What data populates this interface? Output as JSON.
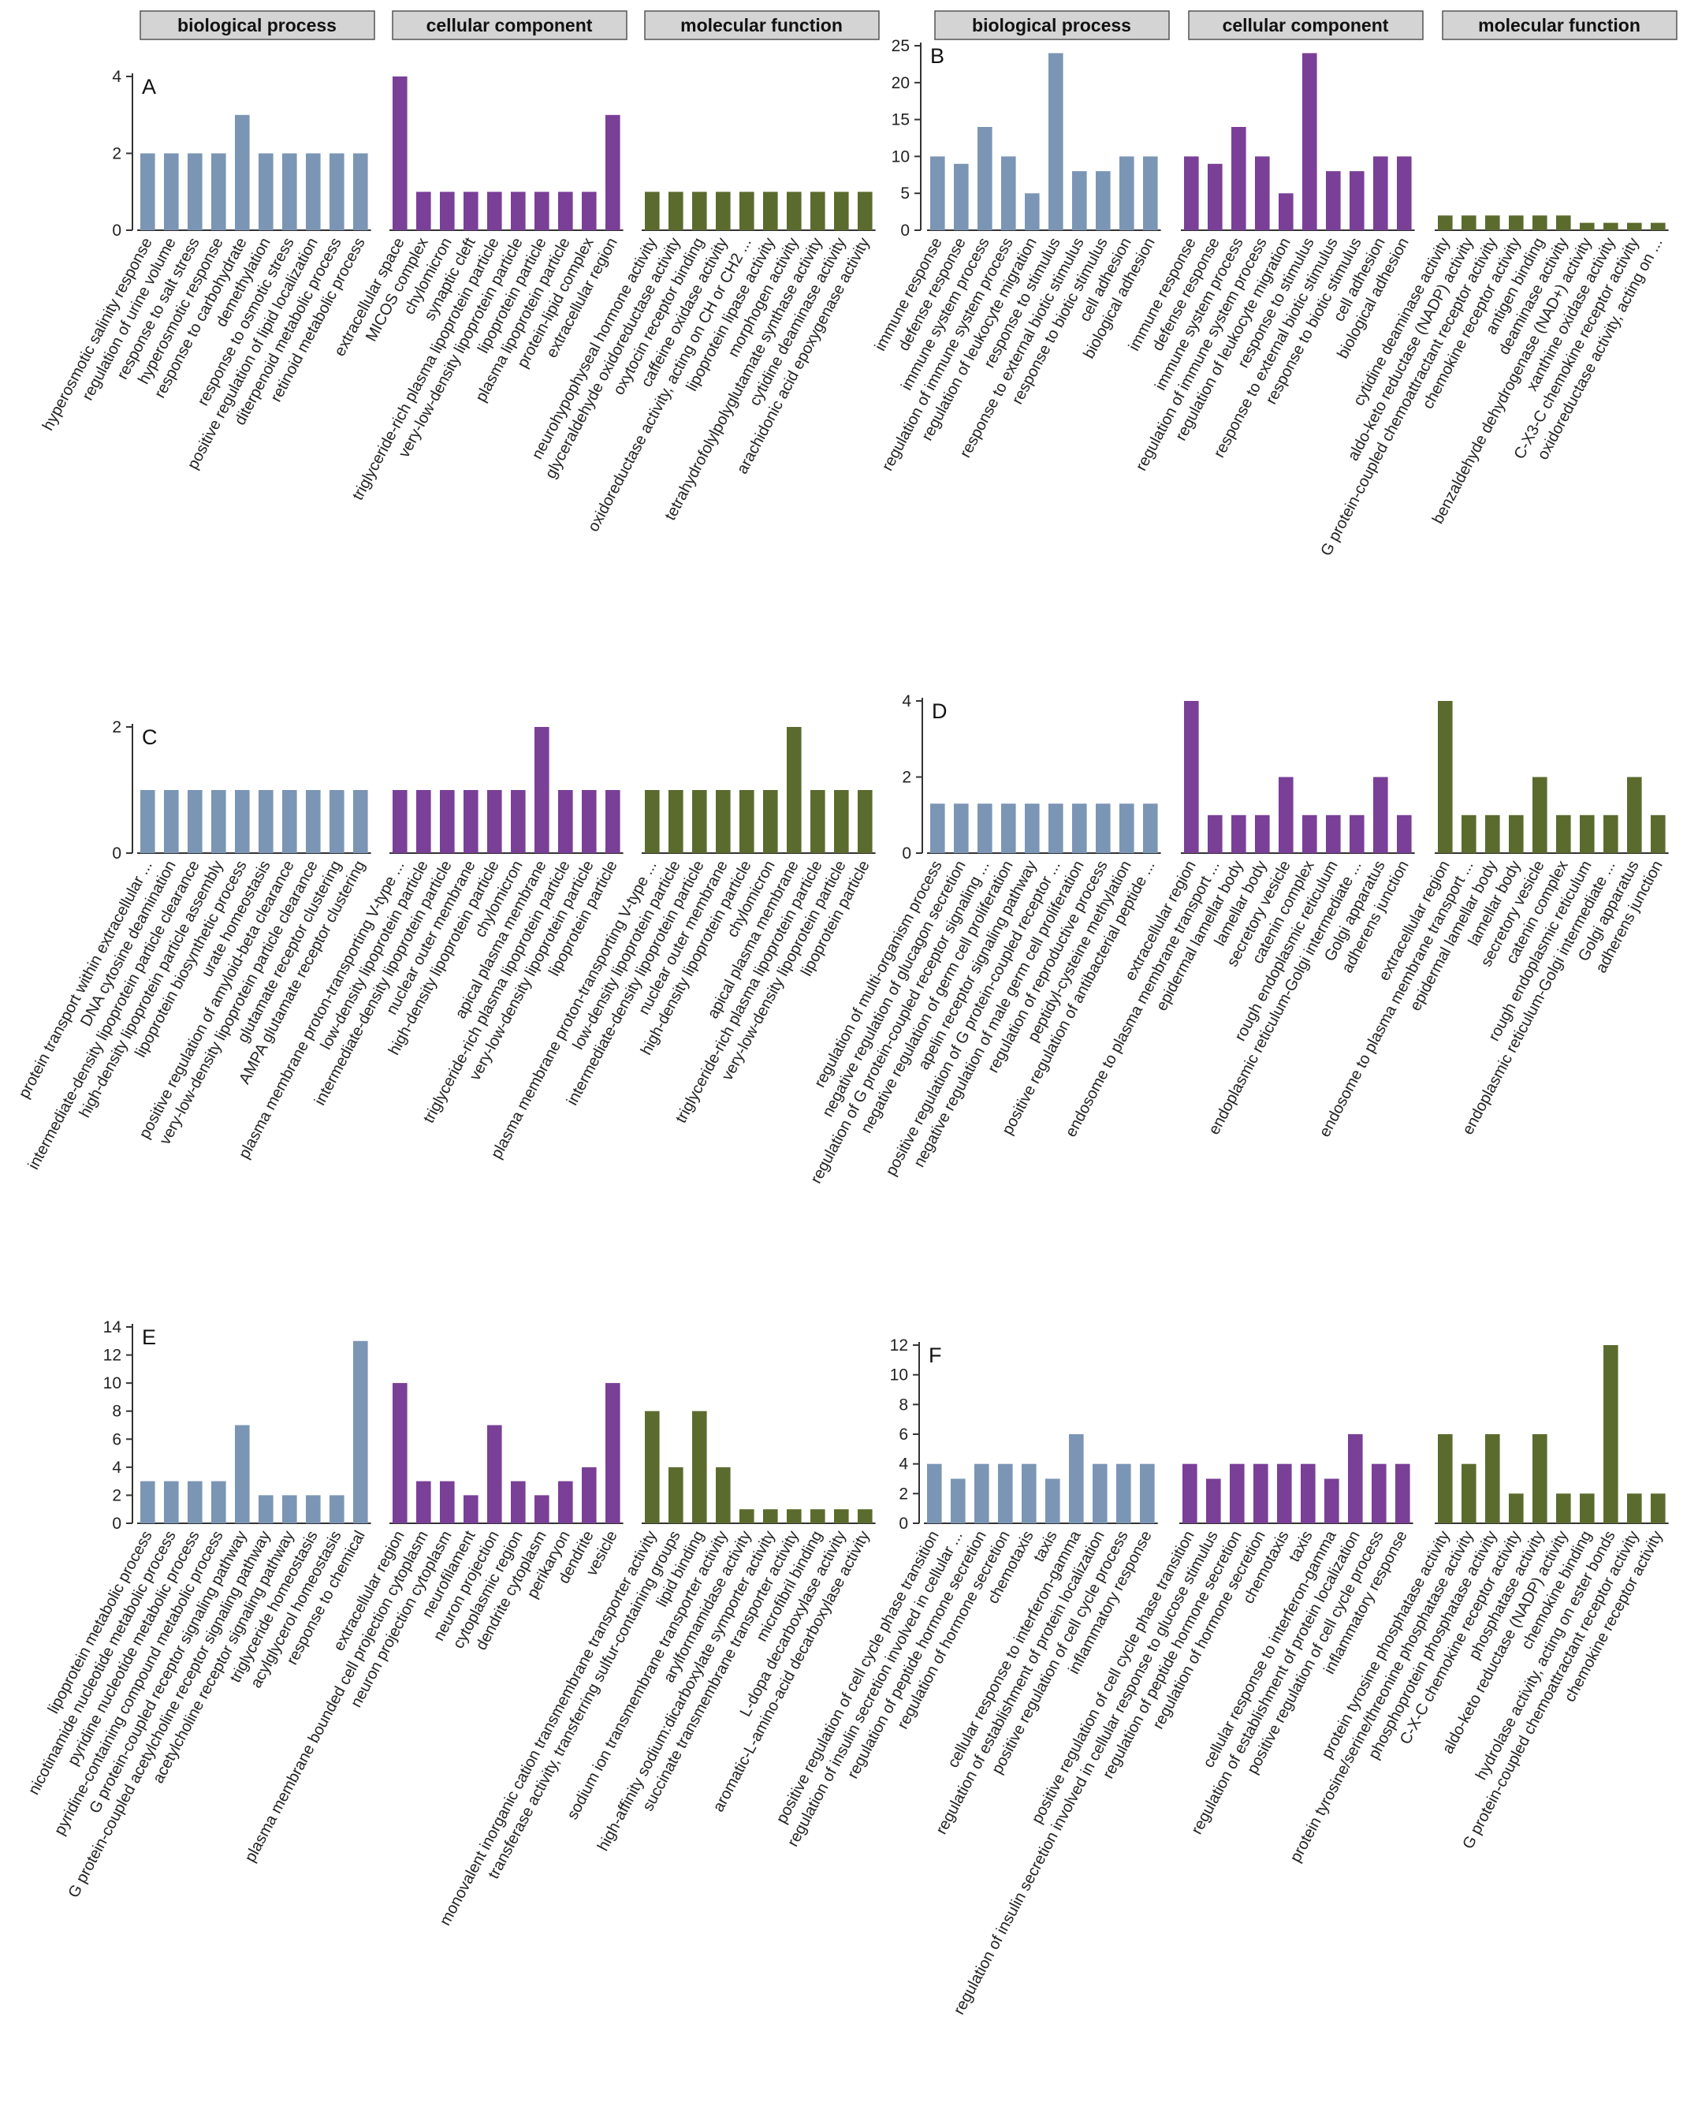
{
  "headers": [
    "biological process",
    "cellular component",
    "molecular function"
  ],
  "colors": {
    "biological_process": "#7b95b5",
    "cellular_component": "#7a3f97",
    "molecular_function": "#5b6b2e"
  },
  "chart_data": [
    {
      "type": "bar",
      "panel": "A",
      "ylim": [
        0,
        4
      ],
      "yticks": [
        0,
        2,
        4
      ],
      "groups": [
        {
          "name": "biological process",
          "categories": [
            "hyperosmotic salinity response",
            "regulation of urine volume",
            "response to salt stress",
            "hyperosmotic response",
            "response to carbohydrate",
            "demethylation",
            "response to osmotic stress",
            "positive regulation of lipid localization",
            "diterpenoid metabolic process",
            "retinoid metabolic process"
          ],
          "values": [
            2,
            2,
            2,
            2,
            3,
            2,
            2,
            2,
            2,
            2
          ]
        },
        {
          "name": "cellular component",
          "categories": [
            "extracellular space",
            "MICOS complex",
            "chylomicron",
            "synaptic cleft",
            "triglyceride-rich plasma lipoprotein particle",
            "very-low-density lipoprotein particle",
            "lipoprotein particle",
            "plasma lipoprotein particle",
            "protein-lipid complex",
            "extracellular region"
          ],
          "values": [
            4,
            1,
            1,
            1,
            1,
            1,
            1,
            1,
            1,
            3
          ]
        },
        {
          "name": "molecular function",
          "categories": [
            "neurohypophyseal hormone activity",
            "glyceraldehyde oxidoreductase activity",
            "oxytocin receptor binding",
            "caffeine oxidase activity",
            "oxidoreductase activity, acting on CH or CH2 ...",
            "lipoprotein lipase activity",
            "morphogen activity",
            "tetrahydrofolylpolyglutamate synthase activity",
            "cytidine deaminase activity",
            "arachidonic acid epoxygenase activity"
          ],
          "values": [
            1,
            1,
            1,
            1,
            1,
            1,
            1,
            1,
            1,
            1
          ]
        }
      ]
    },
    {
      "type": "bar",
      "panel": "B",
      "ylim": [
        0,
        25
      ],
      "yticks": [
        0,
        5,
        10,
        15,
        20,
        25
      ],
      "groups": [
        {
          "name": "biological process",
          "categories": [
            "immune response",
            "defense response",
            "immune system process",
            "regulation of immune system process",
            "regulation of leukocyte migration",
            "response to stimulus",
            "response to external biotic stimulus",
            "response to biotic stimulus",
            "cell adhesion",
            "biological adhesion"
          ],
          "values": [
            10,
            9,
            14,
            10,
            5,
            24,
            8,
            8,
            10,
            10
          ]
        },
        {
          "name": "cellular component",
          "categories": [
            "immune response",
            "defense response",
            "immune system process",
            "regulation of immune system process",
            "regulation of leukocyte migration",
            "response to stimulus",
            "response to external biotic stimulus",
            "response to biotic stimulus",
            "cell adhesion",
            "biological adhesion"
          ],
          "values": [
            10,
            9,
            14,
            10,
            5,
            24,
            8,
            8,
            10,
            10
          ]
        },
        {
          "name": "molecular function",
          "categories": [
            "cytidine deaminase activity",
            "aldo-keto reductase (NADP) activity",
            "G protein-coupled chemoattractant receptor activity",
            "chemokine receptor activity",
            "antigen binding",
            "deaminase activity",
            "benzaldehyde dehydrogenase (NAD+) activity",
            "xanthine oxidase activity",
            "C-X3-C chemokine receptor activity",
            "oxidoreductase activity, acting on ..."
          ],
          "values": [
            2,
            2,
            2,
            2,
            2,
            2,
            1,
            1,
            1,
            1
          ]
        }
      ]
    },
    {
      "type": "bar",
      "panel": "C",
      "ylim": [
        0,
        2
      ],
      "yticks": [
        0,
        2
      ],
      "groups": [
        {
          "name": "biological process",
          "categories": [
            "protein transport within extracellular ...",
            "DNA cytosine deamination",
            "intermediate-density lipoprotein particle clearance",
            "high-density lipoprotein particle assembly",
            "lipoprotein biosynthetic process",
            "urate homeostasis",
            "positive regulation of amyloid-beta clearance",
            "very-low-density lipoprotein particle clearance",
            "glutamate receptor clustering",
            "AMPA glutamate receptor clustering"
          ],
          "values": [
            1,
            1,
            1,
            1,
            1,
            1,
            1,
            1,
            1,
            1
          ]
        },
        {
          "name": "cellular component",
          "categories": [
            "plasma membrane proton-transporting V-type ...",
            "low-density lipoprotein particle",
            "intermediate-density lipoprotein particle",
            "nuclear outer membrane",
            "high-density lipoprotein particle",
            "chylomicron",
            "apical plasma membrane",
            "triglyceride-rich plasma lipoprotein particle",
            "very-low-density lipoprotein particle",
            "lipoprotein particle"
          ],
          "values": [
            1,
            1,
            1,
            1,
            1,
            1,
            2,
            1,
            1,
            1
          ]
        },
        {
          "name": "molecular function",
          "categories": [
            "plasma membrane proton-transporting V-type ...",
            "low-density lipoprotein particle",
            "intermediate-density lipoprotein particle",
            "nuclear outer membrane",
            "high-density lipoprotein particle",
            "chylomicron",
            "apical plasma membrane",
            "triglyceride-rich plasma lipoprotein particle",
            "very-low-density lipoprotein particle",
            "lipoprotein particle"
          ],
          "values": [
            1,
            1,
            1,
            1,
            1,
            1,
            2,
            1,
            1,
            1
          ]
        }
      ]
    },
    {
      "type": "bar",
      "panel": "D",
      "ylim": [
        0,
        4
      ],
      "yticks": [
        0,
        2,
        4
      ],
      "groups": [
        {
          "name": "biological process",
          "categories": [
            "regulation of multi-organism process",
            "negative regulation of glucagon secretion",
            "regulation of G protein-coupled receptor signaling ...",
            "negative regulation of germ cell proliferation",
            "apelin receptor signaling pathway",
            "positive regulation of G protein-coupled receptor ...",
            "negative regulation of male germ cell proliferation",
            "regulation of reproductive process",
            "peptidyl-cysteine methylation",
            "positive regulation of antibacterial peptide ..."
          ],
          "values": [
            1.3,
            1.3,
            1.3,
            1.3,
            1.3,
            1.3,
            1.3,
            1.3,
            1.3,
            1.3
          ]
        },
        {
          "name": "cellular component",
          "categories": [
            "extracellular region",
            "endosome to plasma membrane transport ...",
            "epidermal lamellar body",
            "lamellar body",
            "secretory vesicle",
            "catenin complex",
            "rough endoplasmic reticulum",
            "endoplasmic reticulum-Golgi intermediate ...",
            "Golgi apparatus",
            "adherens junction"
          ],
          "values": [
            4,
            1,
            1,
            1,
            2,
            1,
            1,
            1,
            2,
            1
          ]
        },
        {
          "name": "molecular function",
          "categories": [
            "extracellular region",
            "endosome to plasma membrane transport ...",
            "epidermal lamellar body",
            "lamellar body",
            "secretory vesicle",
            "catenin complex",
            "rough endoplasmic reticulum",
            "endoplasmic reticulum-Golgi intermediate ...",
            "Golgi apparatus",
            "adherens junction"
          ],
          "values": [
            4,
            1,
            1,
            1,
            2,
            1,
            1,
            1,
            2,
            1
          ]
        }
      ]
    },
    {
      "type": "bar",
      "panel": "E",
      "ylim": [
        0,
        14
      ],
      "yticks": [
        0,
        2,
        4,
        6,
        8,
        10,
        12,
        14
      ],
      "groups": [
        {
          "name": "biological process",
          "categories": [
            "lipoprotein metabolic process",
            "nicotinamide nucleotide metabolic process",
            "pyridine nucleotide metabolic process",
            "pyridine-containing compound metabolic process",
            "G protein-coupled receptor signaling pathway",
            "G protein-coupled acetylcholine receptor signaling pathway",
            "acetylcholine receptor signaling pathway",
            "triglyceride homeostasis",
            "acylglycerol homeostasis",
            "response to chemical"
          ],
          "values": [
            3,
            3,
            3,
            3,
            7,
            2,
            2,
            2,
            2,
            13
          ]
        },
        {
          "name": "cellular component",
          "categories": [
            "extracellular region",
            "plasma membrane bounded cell projection cytoplasm",
            "neuron projection cytoplasm",
            "neurofilament",
            "neuron projection",
            "cytoplasmic region",
            "dendrite cytoplasm",
            "perikaryon",
            "dendrite",
            "vesicle"
          ],
          "values": [
            10,
            3,
            3,
            2,
            7,
            3,
            2,
            3,
            4,
            10
          ]
        },
        {
          "name": "molecular function",
          "categories": [
            "monovalent inorganic cation transmembrane transporter activity",
            "transferase activity, transferring sulfur-containing groups",
            "lipid binding",
            "sodium ion transmembrane transporter activity",
            "arylformamidase activity",
            "high-affinity sodium:dicarboxylate symporter activity",
            "succinate transmembrane transporter activity",
            "microfibril binding",
            "L-dopa decarboxylase activity",
            "aromatic-L-amino-acid decarboxylase activity"
          ],
          "values": [
            8,
            4,
            8,
            4,
            1,
            1,
            1,
            1,
            1,
            1
          ]
        }
      ]
    },
    {
      "type": "bar",
      "panel": "F",
      "ylim": [
        0,
        12
      ],
      "yticks": [
        0,
        2,
        4,
        6,
        8,
        10,
        12
      ],
      "groups": [
        {
          "name": "biological process",
          "categories": [
            "positive regulation of cell cycle phase transition",
            "regulation of insulin secretion involved in cellular ...",
            "regulation of peptide hormone secretion",
            "regulation of hormone secretion",
            "chemotaxis",
            "taxis",
            "cellular response to interferon-gamma",
            "regulation of establishment of protein localization",
            "positive regulation of cell cycle process",
            "inflammatory response"
          ],
          "values": [
            4,
            3,
            4,
            4,
            4,
            3,
            6,
            4,
            4,
            4
          ]
        },
        {
          "name": "cellular component",
          "categories": [
            "positive regulation of cell cycle phase transition",
            "regulation of insulin secretion involved in cellular response to glucose stimulus",
            "regulation of peptide hormone secretion",
            "regulation of hormone secretion",
            "chemotaxis",
            "taxis",
            "cellular response to interferon-gamma",
            "regulation of establishment of protein localization",
            "positive regulation of cell cycle process",
            "inflammatory response"
          ],
          "values": [
            4,
            3,
            4,
            4,
            4,
            4,
            3,
            6,
            4,
            4
          ]
        },
        {
          "name": "molecular function",
          "categories": [
            "protein tyrosine phosphatase activity",
            "protein tyrosine/serine/threonine phosphatase activity",
            "phosphoprotein phosphatase activity",
            "C-X-C chemokine receptor activity",
            "phosphatase activity",
            "aldo-keto reductase (NADP) activity",
            "chemokine binding",
            "hydrolase activity, acting on ester bonds",
            "G protein-coupled chemoattractant receptor activity",
            "chemokine receptor activity"
          ],
          "values": [
            6,
            4,
            6,
            2,
            6,
            2,
            2,
            12,
            2,
            2
          ]
        }
      ]
    }
  ]
}
